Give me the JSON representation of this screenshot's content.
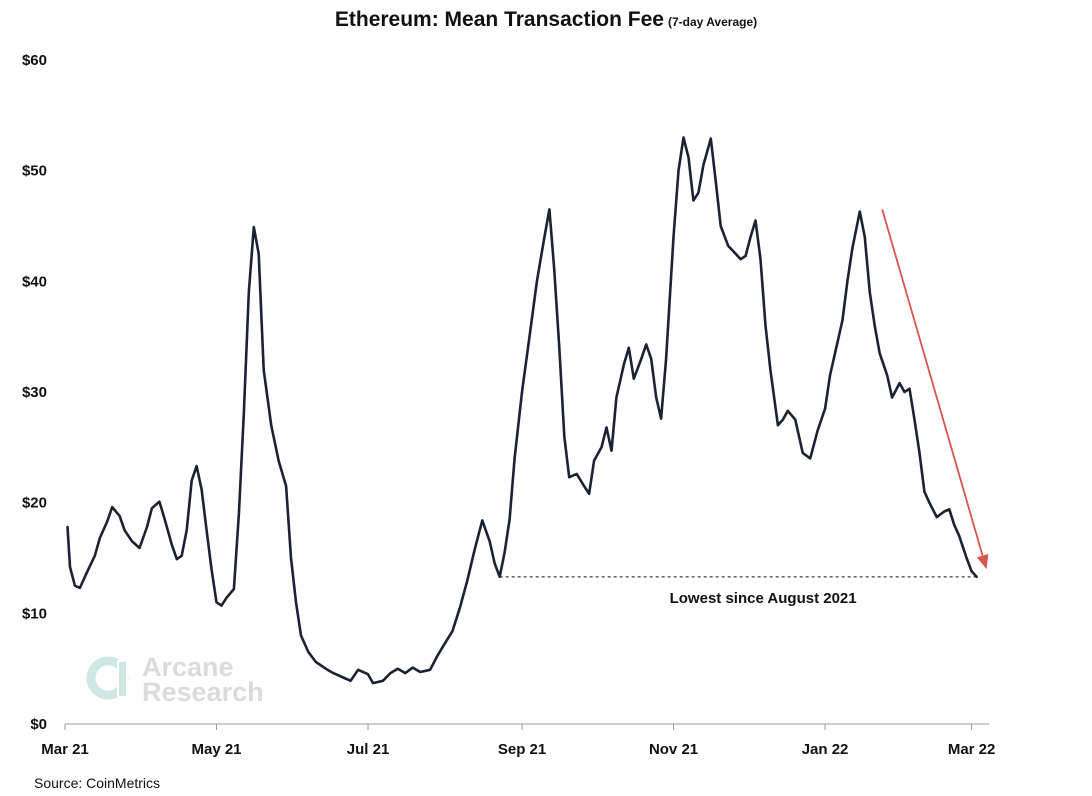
{
  "header": {
    "title": "Ethereum: Mean Transaction Fee",
    "subtitle": "(7-day Average)"
  },
  "source": "Source: CoinMetrics",
  "watermark": {
    "line1": "Arcane",
    "line2": "Research"
  },
  "annotation": {
    "text": "Lowest since August 2021"
  },
  "colors": {
    "line": "#1a2333",
    "arrow": "#d9534f",
    "axis": "#999999",
    "watermark": "#d9ddd9",
    "watermark_logo": "#cfe8e5"
  },
  "chart_data": {
    "type": "line",
    "title": "Ethereum: Mean Transaction Fee",
    "subtitle": "(7-day Average)",
    "xlabel": "",
    "ylabel": "",
    "x_start": "2021-03-01",
    "x_end": "2022-03-08",
    "ylim": [
      0,
      60
    ],
    "yticks": [
      0,
      10,
      20,
      30,
      40,
      50,
      60
    ],
    "ytick_labels": [
      "$0",
      "$10",
      "$20",
      "$30",
      "$40",
      "$50",
      "$60"
    ],
    "xticks": [
      {
        "date": "2021-03-01",
        "label": "Mar 21"
      },
      {
        "date": "2021-05-01",
        "label": "May 21"
      },
      {
        "date": "2021-07-01",
        "label": "Jul 21"
      },
      {
        "date": "2021-09-01",
        "label": "Sep 21"
      },
      {
        "date": "2021-11-01",
        "label": "Nov 21"
      },
      {
        "date": "2022-01-01",
        "label": "Jan 22"
      },
      {
        "date": "2022-03-01",
        "label": "Mar 22"
      }
    ],
    "grid": false,
    "legend": "none",
    "series": [
      {
        "points": [
          [
            "2021-03-02",
            17.8
          ],
          [
            "2021-03-03",
            14.2
          ],
          [
            "2021-03-05",
            12.5
          ],
          [
            "2021-03-07",
            12.3
          ],
          [
            "2021-03-10",
            13.8
          ],
          [
            "2021-03-13",
            15.2
          ],
          [
            "2021-03-15",
            16.8
          ],
          [
            "2021-03-18",
            18.3
          ],
          [
            "2021-03-20",
            19.6
          ],
          [
            "2021-03-23",
            18.8
          ],
          [
            "2021-03-25",
            17.5
          ],
          [
            "2021-03-28",
            16.5
          ],
          [
            "2021-03-31",
            15.9
          ],
          [
            "2021-04-03",
            17.8
          ],
          [
            "2021-04-05",
            19.5
          ],
          [
            "2021-04-08",
            20.1
          ],
          [
            "2021-04-10",
            18.6
          ],
          [
            "2021-04-13",
            16.2
          ],
          [
            "2021-04-15",
            14.9
          ],
          [
            "2021-04-17",
            15.2
          ],
          [
            "2021-04-19",
            17.5
          ],
          [
            "2021-04-21",
            22.0
          ],
          [
            "2021-04-23",
            23.3
          ],
          [
            "2021-04-25",
            21.2
          ],
          [
            "2021-04-27",
            17.5
          ],
          [
            "2021-04-29",
            14.0
          ],
          [
            "2021-05-01",
            11.0
          ],
          [
            "2021-05-03",
            10.7
          ],
          [
            "2021-05-05",
            11.4
          ],
          [
            "2021-05-08",
            12.2
          ],
          [
            "2021-05-10",
            19.0
          ],
          [
            "2021-05-12",
            28.0
          ],
          [
            "2021-05-14",
            39.0
          ],
          [
            "2021-05-16",
            44.9
          ],
          [
            "2021-05-18",
            42.5
          ],
          [
            "2021-05-20",
            32.0
          ],
          [
            "2021-05-23",
            27.0
          ],
          [
            "2021-05-26",
            23.8
          ],
          [
            "2021-05-29",
            21.5
          ],
          [
            "2021-05-31",
            15.0
          ],
          [
            "2021-06-02",
            11.0
          ],
          [
            "2021-06-04",
            8.0
          ],
          [
            "2021-06-07",
            6.5
          ],
          [
            "2021-06-10",
            5.6
          ],
          [
            "2021-06-14",
            5.0
          ],
          [
            "2021-06-17",
            4.6
          ],
          [
            "2021-06-21",
            4.2
          ],
          [
            "2021-06-24",
            3.9
          ],
          [
            "2021-06-27",
            4.9
          ],
          [
            "2021-07-01",
            4.5
          ],
          [
            "2021-07-03",
            3.7
          ],
          [
            "2021-07-07",
            3.9
          ],
          [
            "2021-07-10",
            4.6
          ],
          [
            "2021-07-13",
            5.0
          ],
          [
            "2021-07-16",
            4.6
          ],
          [
            "2021-07-19",
            5.1
          ],
          [
            "2021-07-22",
            4.7
          ],
          [
            "2021-07-26",
            4.9
          ],
          [
            "2021-07-29",
            6.2
          ],
          [
            "2021-08-01",
            7.3
          ],
          [
            "2021-08-04",
            8.4
          ],
          [
            "2021-08-07",
            10.5
          ],
          [
            "2021-08-10",
            13.0
          ],
          [
            "2021-08-13",
            15.8
          ],
          [
            "2021-08-16",
            18.4
          ],
          [
            "2021-08-19",
            16.5
          ],
          [
            "2021-08-21",
            14.5
          ],
          [
            "2021-08-23",
            13.3
          ],
          [
            "2021-08-25",
            15.5
          ],
          [
            "2021-08-27",
            18.5
          ],
          [
            "2021-08-29",
            24.0
          ],
          [
            "2021-09-01",
            30.0
          ],
          [
            "2021-09-04",
            35.0
          ],
          [
            "2021-09-07",
            40.0
          ],
          [
            "2021-09-10",
            44.0
          ],
          [
            "2021-09-12",
            46.5
          ],
          [
            "2021-09-14",
            41.0
          ],
          [
            "2021-09-16",
            34.0
          ],
          [
            "2021-09-18",
            26.0
          ],
          [
            "2021-09-20",
            22.3
          ],
          [
            "2021-09-23",
            22.6
          ],
          [
            "2021-09-26",
            21.5
          ],
          [
            "2021-09-28",
            20.8
          ],
          [
            "2021-09-30",
            23.8
          ],
          [
            "2021-10-03",
            25.0
          ],
          [
            "2021-10-05",
            26.8
          ],
          [
            "2021-10-07",
            24.7
          ],
          [
            "2021-10-09",
            29.5
          ],
          [
            "2021-10-12",
            32.5
          ],
          [
            "2021-10-14",
            34.0
          ],
          [
            "2021-10-16",
            31.2
          ],
          [
            "2021-10-19",
            33.0
          ],
          [
            "2021-10-21",
            34.3
          ],
          [
            "2021-10-23",
            33.0
          ],
          [
            "2021-10-25",
            29.5
          ],
          [
            "2021-10-27",
            27.6
          ],
          [
            "2021-10-29",
            33.0
          ],
          [
            "2021-11-01",
            44.0
          ],
          [
            "2021-11-03",
            50.0
          ],
          [
            "2021-11-05",
            53.0
          ],
          [
            "2021-11-07",
            51.2
          ],
          [
            "2021-11-09",
            47.3
          ],
          [
            "2021-11-11",
            48.0
          ],
          [
            "2021-11-13",
            50.5
          ],
          [
            "2021-11-16",
            52.9
          ],
          [
            "2021-11-18",
            49.0
          ],
          [
            "2021-11-20",
            45.0
          ],
          [
            "2021-11-23",
            43.2
          ],
          [
            "2021-11-26",
            42.5
          ],
          [
            "2021-11-28",
            42.0
          ],
          [
            "2021-11-30",
            42.3
          ],
          [
            "2021-12-02",
            44.0
          ],
          [
            "2021-12-04",
            45.5
          ],
          [
            "2021-12-06",
            42.0
          ],
          [
            "2021-12-08",
            36.0
          ],
          [
            "2021-12-10",
            32.0
          ],
          [
            "2021-12-13",
            27.0
          ],
          [
            "2021-12-15",
            27.5
          ],
          [
            "2021-12-17",
            28.3
          ],
          [
            "2021-12-20",
            27.5
          ],
          [
            "2021-12-23",
            24.5
          ],
          [
            "2021-12-26",
            24.0
          ],
          [
            "2021-12-29",
            26.5
          ],
          [
            "2022-01-01",
            28.5
          ],
          [
            "2022-01-03",
            31.5
          ],
          [
            "2022-01-05",
            33.5
          ],
          [
            "2022-01-08",
            36.5
          ],
          [
            "2022-01-10",
            40.0
          ],
          [
            "2022-01-12",
            43.0
          ],
          [
            "2022-01-15",
            46.3
          ],
          [
            "2022-01-17",
            44.0
          ],
          [
            "2022-01-19",
            39.0
          ],
          [
            "2022-01-21",
            36.0
          ],
          [
            "2022-01-23",
            33.5
          ],
          [
            "2022-01-26",
            31.5
          ],
          [
            "2022-01-28",
            29.5
          ],
          [
            "2022-01-31",
            30.8
          ],
          [
            "2022-02-02",
            30.0
          ],
          [
            "2022-02-04",
            30.3
          ],
          [
            "2022-02-06",
            27.5
          ],
          [
            "2022-02-08",
            24.5
          ],
          [
            "2022-02-10",
            21.0
          ],
          [
            "2022-02-12",
            20.0
          ],
          [
            "2022-02-15",
            18.7
          ],
          [
            "2022-02-18",
            19.2
          ],
          [
            "2022-02-20",
            19.4
          ],
          [
            "2022-02-22",
            18.0
          ],
          [
            "2022-02-24",
            17.0
          ],
          [
            "2022-02-27",
            15.0
          ],
          [
            "2022-03-01",
            13.8
          ],
          [
            "2022-03-03",
            13.3
          ]
        ]
      }
    ],
    "reference_line": {
      "y": 13.3,
      "from": "2021-08-23",
      "to": "2022-03-03",
      "style": "dashed",
      "label": "Lowest since August 2021"
    },
    "trend_arrow": {
      "from": [
        "2022-01-24",
        46.5
      ],
      "to": [
        "2022-03-07",
        14.0
      ]
    }
  }
}
